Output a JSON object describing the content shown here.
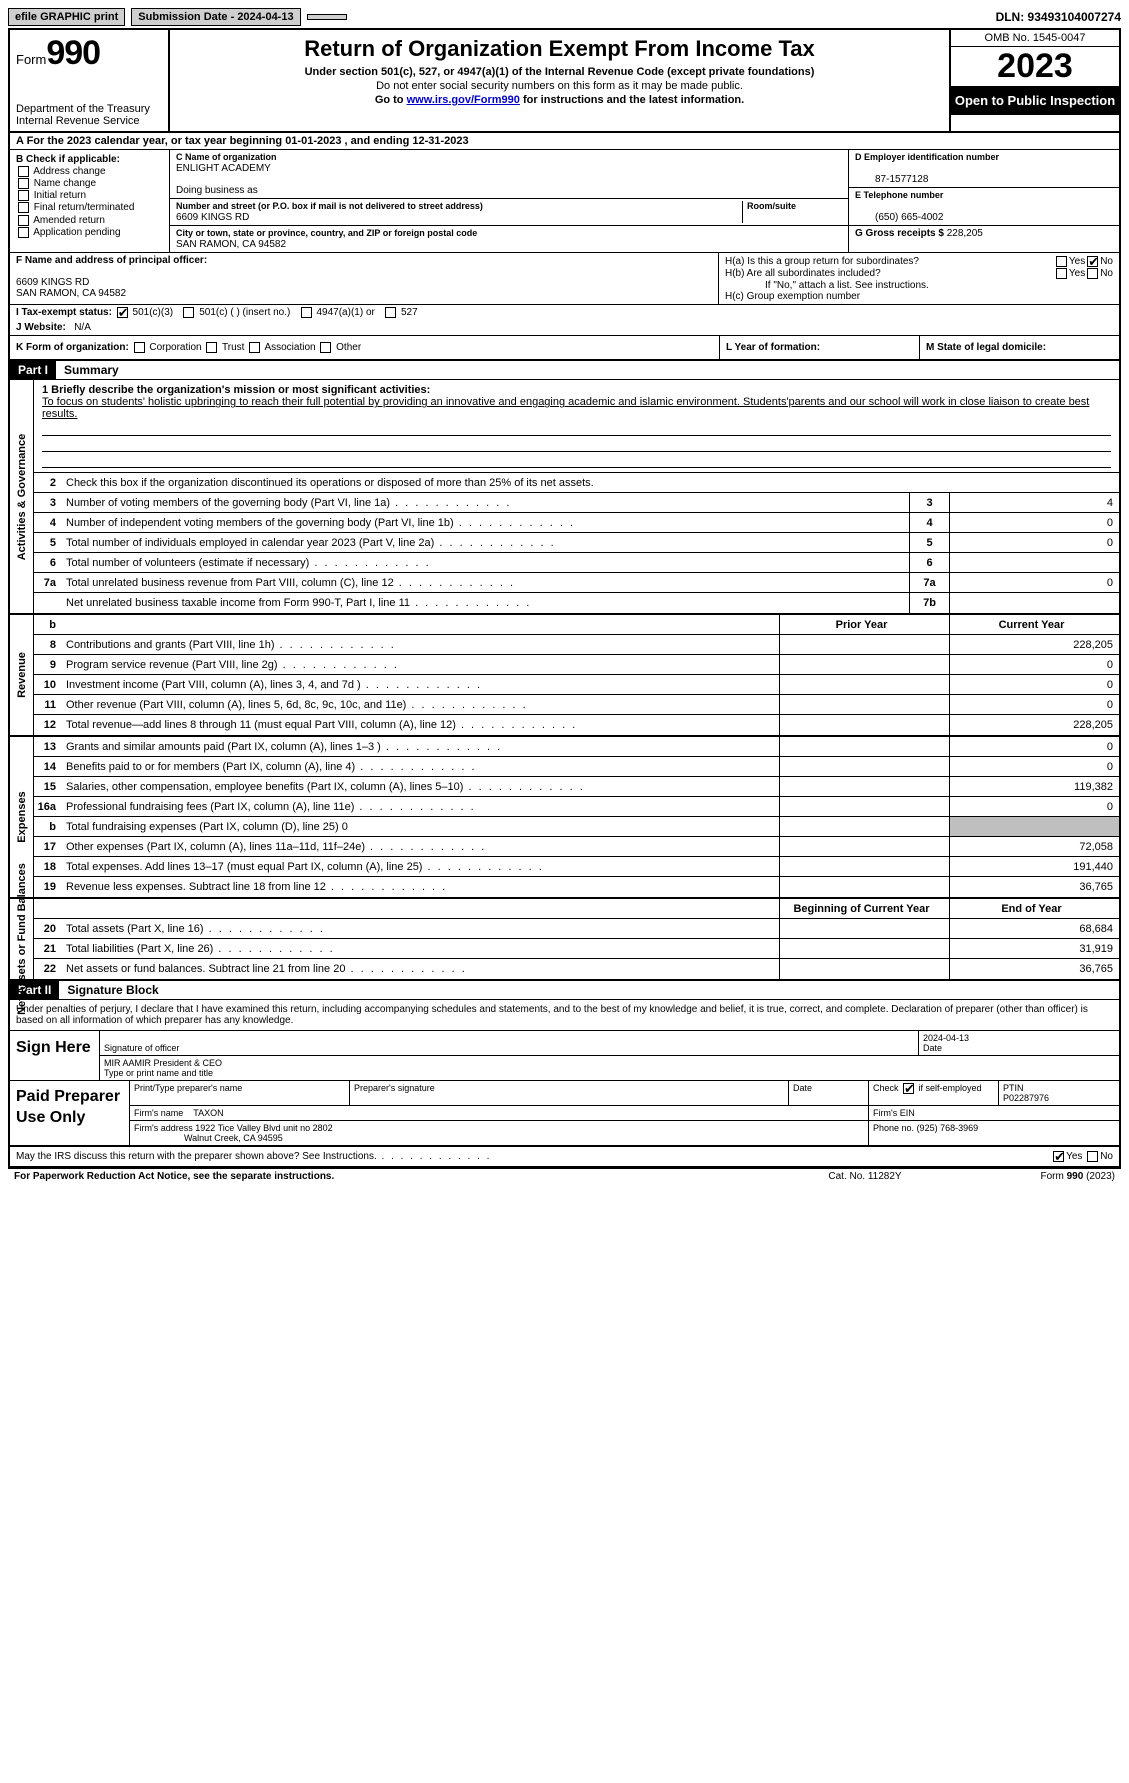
{
  "topbar": {
    "efile": "efile GRAPHIC print",
    "submission_label": "Submission Date - 2024-04-13",
    "dln_label": "DLN: 93493104007274"
  },
  "header": {
    "form_prefix": "Form",
    "form_number": "990",
    "dept": "Department of the Treasury Internal Revenue Service",
    "title": "Return of Organization Exempt From Income Tax",
    "subtitle": "Under section 501(c), 527, or 4947(a)(1) of the Internal Revenue Code (except private foundations)",
    "warn": "Do not enter social security numbers on this form as it may be made public.",
    "goto_pre": "Go to ",
    "goto_link": "www.irs.gov/Form990",
    "goto_post": " for instructions and the latest information.",
    "omb": "OMB No. 1545-0047",
    "year": "2023",
    "inspect": "Open to Public Inspection"
  },
  "row_a": "A For the 2023 calendar year, or tax year beginning 01-01-2023    , and ending 12-31-2023",
  "section_b": {
    "label": "B Check if applicable:",
    "items": [
      "Address change",
      "Name change",
      "Initial return",
      "Final return/terminated",
      "Amended return",
      "Application pending"
    ]
  },
  "section_c": {
    "name_lbl": "C Name of organization",
    "name_val": "ENLIGHT ACADEMY",
    "dba_lbl": "Doing business as",
    "addr_lbl": "Number and street (or P.O. box if mail is not delivered to street address)",
    "room_lbl": "Room/suite",
    "addr_val": "6609 KINGS RD",
    "city_lbl": "City or town, state or province, country, and ZIP or foreign postal code",
    "city_val": "SAN RAMON, CA  94582"
  },
  "section_d": {
    "ein_lbl": "D Employer identification number",
    "ein_val": "87-1577128",
    "tel_lbl": "E Telephone number",
    "tel_val": "(650) 665-4002",
    "gross_lbl": "G Gross receipts $",
    "gross_val": "228,205"
  },
  "section_f": {
    "lbl": "F  Name and address of principal officer:",
    "addr1": "6609 KINGS RD",
    "addr2": "SAN RAMON, CA  94582"
  },
  "section_h": {
    "ha": "H(a)  Is this a group return for subordinates?",
    "hb": "H(b)  Are all subordinates included?",
    "hb_note": "If \"No,\" attach a list. See instructions.",
    "hc": "H(c)  Group exemption number",
    "yes": "Yes",
    "no": "No"
  },
  "section_i": {
    "lbl": "I   Tax-exempt status:",
    "opts": [
      "501(c)(3)",
      "501(c) (  ) (insert no.)",
      "4947(a)(1) or",
      "527"
    ]
  },
  "section_j": {
    "lbl": "J   Website:",
    "val": "N/A"
  },
  "section_k": {
    "lbl": "K Form of organization:",
    "opts": [
      "Corporation",
      "Trust",
      "Association",
      "Other"
    ]
  },
  "section_l": {
    "lbl": "L Year of formation:"
  },
  "section_m": {
    "lbl": "M State of legal domicile:"
  },
  "part1": {
    "hdr": "Part I",
    "title": "Summary"
  },
  "mission": {
    "q": "1   Briefly describe the organization's mission or most significant activities:",
    "text": "To focus on students' holistic upbringing to reach their full potential by providing an innovative and engaging academic and islamic environment. Students'parents and our school will work in close liaison to create best results."
  },
  "gov_lines": {
    "l2": "Check this box        if the organization discontinued its operations or disposed of more than 25% of its net assets.",
    "l3": "Number of voting members of the governing body (Part VI, line 1a)",
    "l4": "Number of independent voting members of the governing body (Part VI, line 1b)",
    "l5": "Total number of individuals employed in calendar year 2023 (Part V, line 2a)",
    "l6": "Total number of volunteers (estimate if necessary)",
    "l7a": "Total unrelated business revenue from Part VIII, column (C), line 12",
    "l7b": "Net unrelated business taxable income from Form 990-T, Part I, line 11",
    "v3": "4",
    "v4": "0",
    "v5": "0",
    "v6": "",
    "v7a": "0",
    "v7b": ""
  },
  "rev_hdr": {
    "prior": "Prior Year",
    "current": "Current Year"
  },
  "revenue": [
    {
      "n": "8",
      "t": "Contributions and grants (Part VIII, line 1h)",
      "p": "",
      "c": "228,205"
    },
    {
      "n": "9",
      "t": "Program service revenue (Part VIII, line 2g)",
      "p": "",
      "c": "0"
    },
    {
      "n": "10",
      "t": "Investment income (Part VIII, column (A), lines 3, 4, and 7d )",
      "p": "",
      "c": "0"
    },
    {
      "n": "11",
      "t": "Other revenue (Part VIII, column (A), lines 5, 6d, 8c, 9c, 10c, and 11e)",
      "p": "",
      "c": "0"
    },
    {
      "n": "12",
      "t": "Total revenue—add lines 8 through 11 (must equal Part VIII, column (A), line 12)",
      "p": "",
      "c": "228,205"
    }
  ],
  "expenses": [
    {
      "n": "13",
      "t": "Grants and similar amounts paid (Part IX, column (A), lines 1–3 )",
      "p": "",
      "c": "0"
    },
    {
      "n": "14",
      "t": "Benefits paid to or for members (Part IX, column (A), line 4)",
      "p": "",
      "c": "0"
    },
    {
      "n": "15",
      "t": "Salaries, other compensation, employee benefits (Part IX, column (A), lines 5–10)",
      "p": "",
      "c": "119,382"
    },
    {
      "n": "16a",
      "t": "Professional fundraising fees (Part IX, column (A), line 11e)",
      "p": "",
      "c": "0"
    },
    {
      "n": "b",
      "t": "Total fundraising expenses (Part IX, column (D), line 25) 0",
      "grey": true
    },
    {
      "n": "17",
      "t": "Other expenses (Part IX, column (A), lines 11a–11d, 11f–24e)",
      "p": "",
      "c": "72,058"
    },
    {
      "n": "18",
      "t": "Total expenses. Add lines 13–17 (must equal Part IX, column (A), line 25)",
      "p": "",
      "c": "191,440"
    },
    {
      "n": "19",
      "t": "Revenue less expenses. Subtract line 18 from line 12",
      "p": "",
      "c": "36,765"
    }
  ],
  "net_hdr": {
    "begin": "Beginning of Current Year",
    "end": "End of Year"
  },
  "net": [
    {
      "n": "20",
      "t": "Total assets (Part X, line 16)",
      "p": "",
      "c": "68,684"
    },
    {
      "n": "21",
      "t": "Total liabilities (Part X, line 26)",
      "p": "",
      "c": "31,919"
    },
    {
      "n": "22",
      "t": "Net assets or fund balances. Subtract line 21 from line 20",
      "p": "",
      "c": "36,765"
    }
  ],
  "vlabels": {
    "gov": "Activities & Governance",
    "rev": "Revenue",
    "exp": "Expenses",
    "net": "Net Assets or Fund Balances"
  },
  "part2": {
    "hdr": "Part II",
    "title": "Signature Block"
  },
  "sig_decl": "Under penalties of perjury, I declare that I have examined this return, including accompanying schedules and statements, and to the best of my knowledge and belief, it is true, correct, and complete. Declaration of preparer (other than officer) is based on all information of which preparer has any knowledge.",
  "sign": {
    "here": "Sign Here",
    "sig_officer": "Signature of officer",
    "date_lbl": "Date",
    "date_val": "2024-04-13",
    "name_line": "MIR AAMIR  President & CEO",
    "type_lbl": "Type or print name and title"
  },
  "paid": {
    "label": "Paid Preparer Use Only",
    "print_lbl": "Print/Type preparer's name",
    "sig_lbl": "Preparer's signature",
    "date_lbl": "Date",
    "check_lbl": "Check        if self-employed",
    "ptin_lbl": "PTIN",
    "ptin_val": "P02287976",
    "firm_name_lbl": "Firm's name",
    "firm_name_val": "TAXON",
    "firm_ein_lbl": "Firm's EIN",
    "firm_addr_lbl": "Firm's address",
    "firm_addr_val": "1922 Tice Valley Blvd unit no 2802",
    "firm_city": "Walnut Creek, CA  94595",
    "phone_lbl": "Phone no.",
    "phone_val": "(925) 768-3969"
  },
  "footer": {
    "discuss": "May the IRS discuss this return with the preparer shown above? See Instructions.",
    "yes": "Yes",
    "no": "No",
    "pra": "For Paperwork Reduction Act Notice, see the separate instructions.",
    "cat": "Cat. No. 11282Y",
    "form": "Form 990 (2023)"
  }
}
